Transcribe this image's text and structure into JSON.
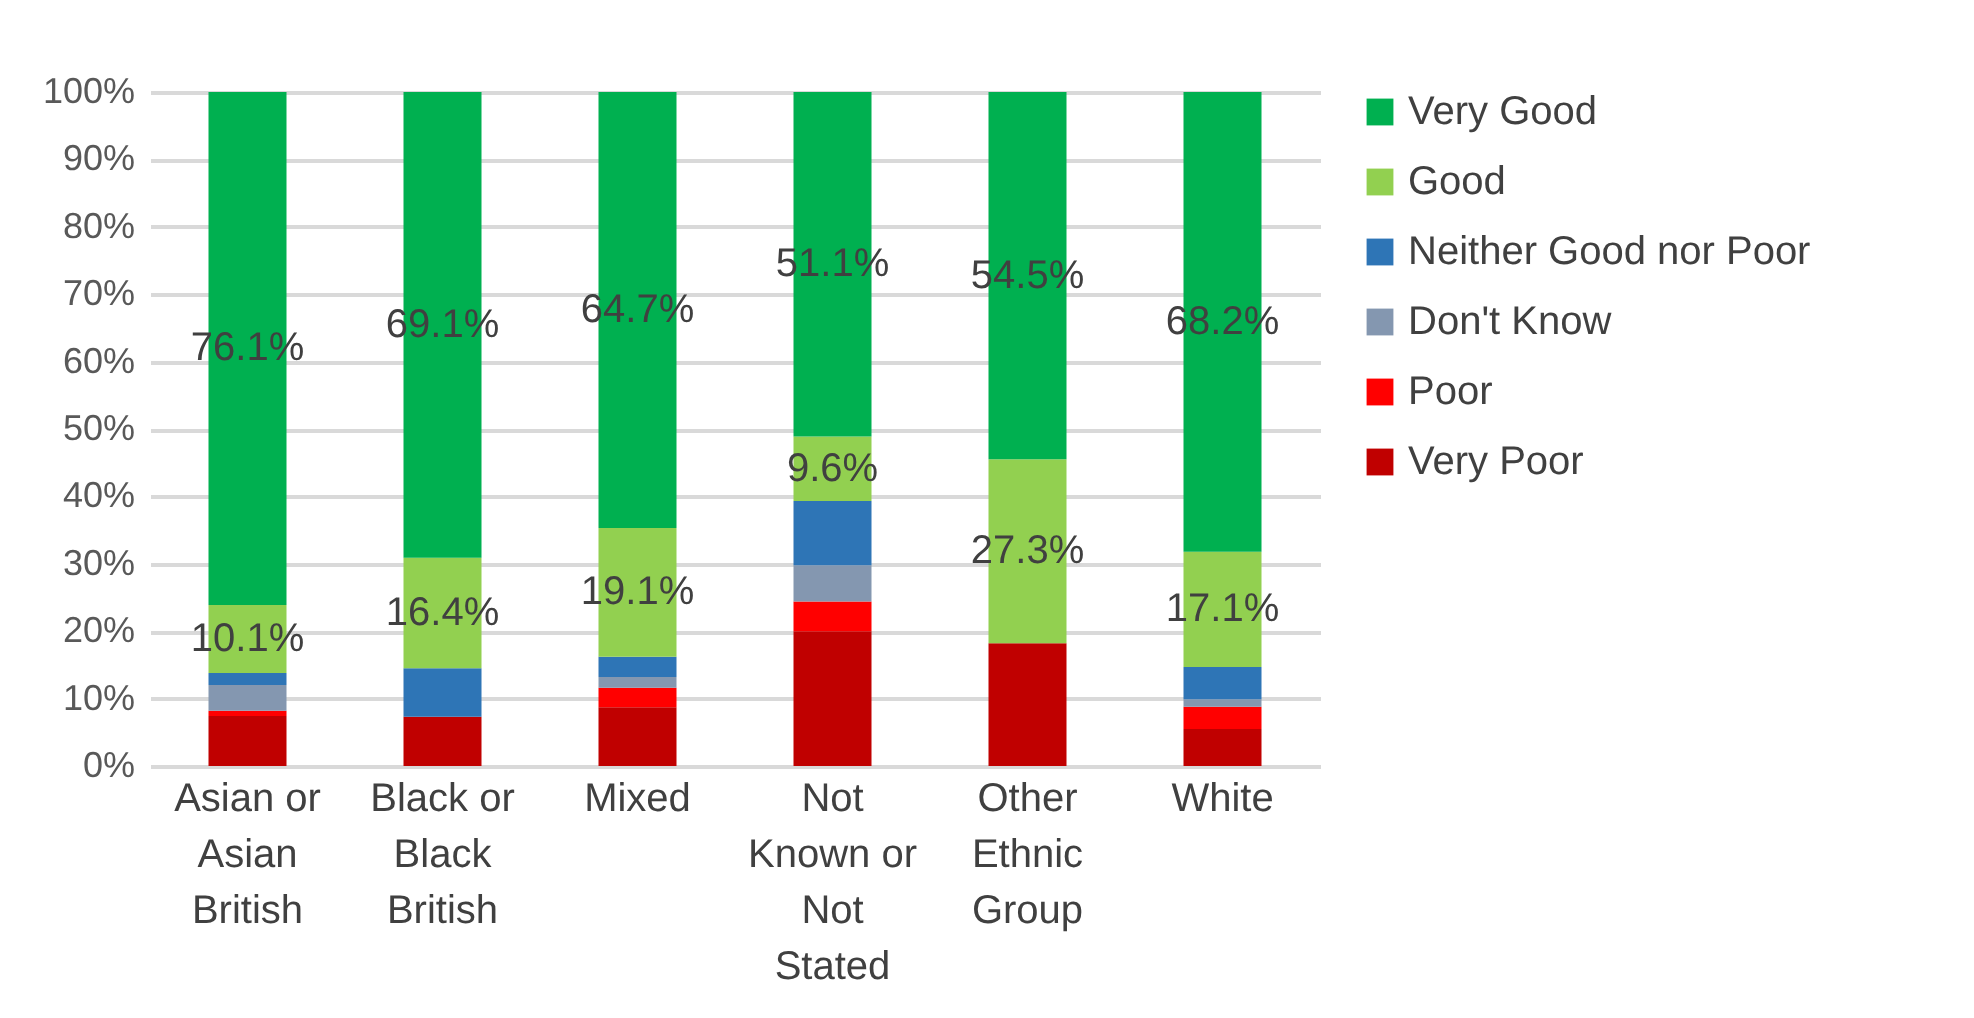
{
  "chart_data": {
    "type": "bar",
    "stacked": true,
    "categories": [
      "Asian or Asian British",
      "Black or Black British",
      "Mixed",
      "Not Known or Not Stated",
      "Other Ethnic Group",
      "White"
    ],
    "series": [
      {
        "name": "Very Poor",
        "color": "#c00000",
        "values": [
          7.4,
          7.3,
          8.7,
          20.0,
          18.2,
          5.5
        ]
      },
      {
        "name": "Poor",
        "color": "#ff0000",
        "values": [
          0.8,
          0,
          2.9,
          4.4,
          0,
          3.3
        ]
      },
      {
        "name": "Don't Know",
        "color": "#8497b0",
        "values": [
          3.8,
          0,
          1.6,
          5.4,
          0,
          1.1
        ]
      },
      {
        "name": "Neither Good nor Poor",
        "color": "#2e75b6",
        "values": [
          1.8,
          7.2,
          3.0,
          9.5,
          0,
          4.8
        ]
      },
      {
        "name": "Good",
        "color": "#92d050",
        "values": [
          10.1,
          16.4,
          19.1,
          9.6,
          27.3,
          17.1
        ],
        "value_labels": [
          "10.1%",
          "16.4%",
          "19.1%",
          "9.6%",
          "27.3%",
          "17.1%"
        ]
      },
      {
        "name": "Very Good",
        "color": "#00b050",
        "values": [
          76.1,
          69.1,
          64.7,
          51.1,
          54.5,
          68.2
        ],
        "value_labels": [
          "76.1%",
          "69.1%",
          "64.7%",
          "51.1%",
          "54.5%",
          "68.2%"
        ]
      }
    ],
    "ylim": [
      0,
      100
    ],
    "yticks": [
      {
        "value": 0,
        "label": "0%"
      },
      {
        "value": 10,
        "label": "10%"
      },
      {
        "value": 20,
        "label": "20%"
      },
      {
        "value": 30,
        "label": "30%"
      },
      {
        "value": 40,
        "label": "40%"
      },
      {
        "value": 50,
        "label": "50%"
      },
      {
        "value": 60,
        "label": "60%"
      },
      {
        "value": 70,
        "label": "70%"
      },
      {
        "value": 80,
        "label": "80%"
      },
      {
        "value": 90,
        "label": "90%"
      },
      {
        "value": 100,
        "label": "100%"
      }
    ],
    "grid": "y",
    "legend": "right"
  }
}
